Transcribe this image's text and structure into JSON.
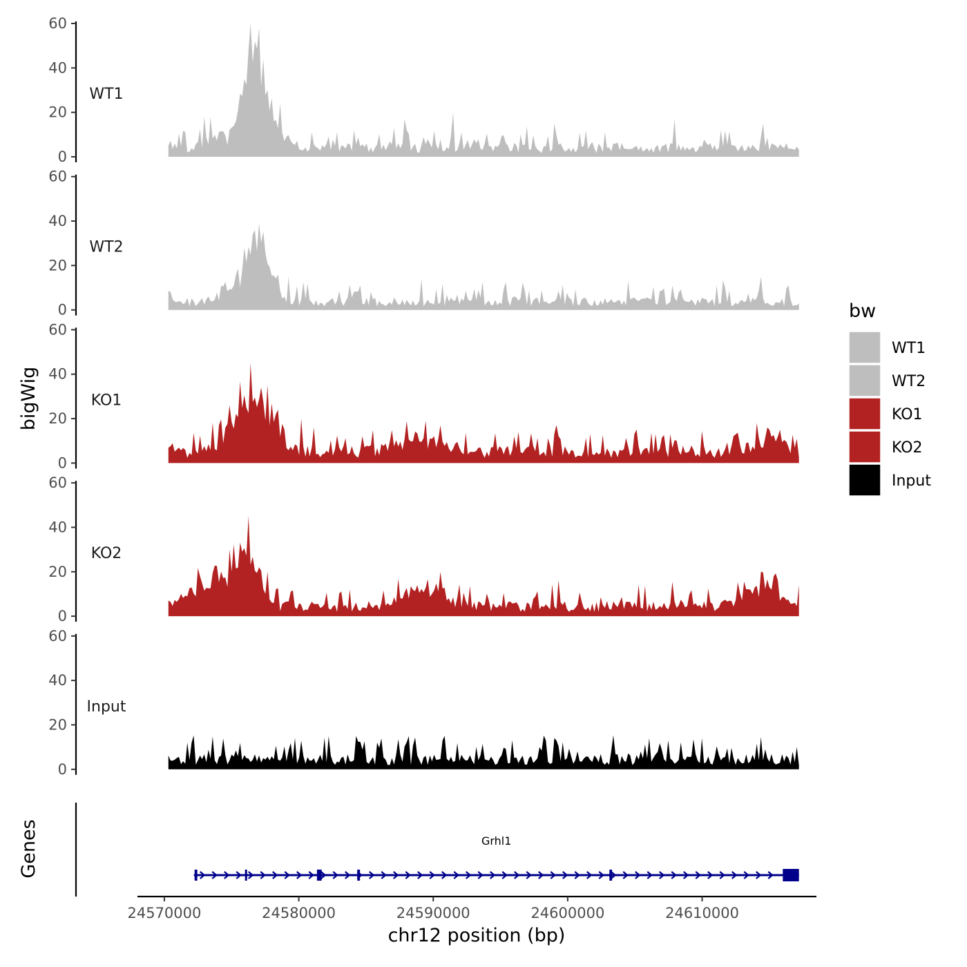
{
  "chart_data": {
    "type": "area",
    "y_axis_title": "bigWig",
    "x_axis_title": "chr12 position (bp)",
    "genes_axis_title": "Genes",
    "x_ticks": [
      24570000,
      24580000,
      24590000,
      24600000,
      24610000
    ],
    "x_tick_labels": [
      "24570000",
      "24580000",
      "24590000",
      "24600000",
      "24610000"
    ],
    "xlim": [
      24568000,
      24618500
    ],
    "data_range": [
      24570300,
      24617200
    ],
    "y_ticks": [
      0,
      20,
      40,
      60
    ],
    "y_tick_labels": [
      "0",
      "20",
      "40",
      "60"
    ],
    "ylim": [
      0,
      60
    ],
    "legend": {
      "title": "bw",
      "items": [
        {
          "label": "WT1",
          "color": "#bebebe"
        },
        {
          "label": "WT2",
          "color": "#bebebe"
        },
        {
          "label": "KO1",
          "color": "#b22222"
        },
        {
          "label": "KO2",
          "color": "#b22222"
        },
        {
          "label": "Input",
          "color": "#000000"
        }
      ]
    },
    "series": [
      {
        "name": "WT1",
        "color": "#bebebe",
        "noise": 5,
        "base": 5,
        "peaks": [
          [
            24576800,
            38,
            700
          ],
          [
            24576000,
            18,
            500
          ],
          [
            24578000,
            12,
            900
          ],
          [
            24574000,
            6,
            900
          ]
        ],
        "features": [
          [
            24577100,
            58
          ],
          [
            24576700,
            52
          ],
          [
            24576300,
            48
          ],
          [
            24575900,
            35
          ],
          [
            24577600,
            30
          ],
          [
            24578600,
            24
          ],
          [
            24587900,
            17
          ],
          [
            24591500,
            20
          ],
          [
            24599000,
            15
          ],
          [
            24608000,
            17
          ],
          [
            24614600,
            15
          ],
          [
            24573000,
            18
          ]
        ]
      },
      {
        "name": "WT2",
        "color": "#bebebe",
        "noise": 5,
        "base": 4.5,
        "peaks": [
          [
            24576700,
            24,
            700
          ],
          [
            24577600,
            12,
            700
          ],
          [
            24574800,
            6,
            800
          ]
        ],
        "features": [
          [
            24576500,
            34
          ],
          [
            24577100,
            39
          ],
          [
            24576800,
            36
          ],
          [
            24575900,
            28
          ],
          [
            24578500,
            16
          ],
          [
            24579300,
            15
          ],
          [
            24589200,
            14
          ],
          [
            24604500,
            13
          ],
          [
            24614300,
            15
          ],
          [
            24584500,
            11
          ]
        ]
      },
      {
        "name": "KO1",
        "color": "#b22222",
        "noise": 6,
        "base": 6.5,
        "peaks": [
          [
            24576500,
            22,
            900
          ],
          [
            24575000,
            8,
            900
          ],
          [
            24577700,
            10,
            800
          ],
          [
            24589000,
            7,
            1500
          ],
          [
            24614800,
            6,
            1100
          ]
        ],
        "features": [
          [
            24576400,
            45
          ],
          [
            24577200,
            34
          ],
          [
            24577600,
            35
          ],
          [
            24574900,
            26
          ],
          [
            24578500,
            24
          ],
          [
            24580200,
            20
          ],
          [
            24590600,
            17
          ],
          [
            24614000,
            18
          ],
          [
            24614900,
            16
          ],
          [
            24589400,
            19
          ]
        ]
      },
      {
        "name": "KO2",
        "color": "#b22222",
        "noise": 6,
        "base": 5.5,
        "peaks": [
          [
            24576300,
            22,
            700
          ],
          [
            24575000,
            14,
            900
          ],
          [
            24572600,
            8,
            1100
          ],
          [
            24589500,
            9,
            1300
          ],
          [
            24614600,
            9,
            1400
          ]
        ],
        "features": [
          [
            24576200,
            45
          ],
          [
            24574800,
            30
          ],
          [
            24577000,
            22
          ],
          [
            24577600,
            20
          ],
          [
            24590600,
            20
          ],
          [
            24614300,
            20
          ],
          [
            24572700,
            18
          ],
          [
            24615300,
            18
          ],
          [
            24615600,
            16
          ],
          [
            24588800,
            14
          ]
        ]
      },
      {
        "name": "Input",
        "color": "#000000",
        "noise": 6,
        "base": 5.5,
        "peaks": [],
        "features": [
          [
            24584300,
            15
          ],
          [
            24606000,
            14
          ],
          [
            24590700,
            13
          ],
          [
            24598400,
            13
          ],
          [
            24572100,
            12
          ],
          [
            24585800,
            12
          ],
          [
            24599200,
            13
          ],
          [
            24607500,
            13
          ],
          [
            24617100,
            10
          ]
        ]
      }
    ],
    "gene": {
      "name": "Grhl1",
      "start": 24572200,
      "end": 24617200,
      "strand": "+",
      "color": "#00008b",
      "exons": [
        [
          24572250,
          24572450
        ],
        [
          24576000,
          24576150
        ],
        [
          24581350,
          24581700
        ],
        [
          24584350,
          24584550
        ],
        [
          24603100,
          24603300
        ],
        [
          24616000,
          24617200
        ]
      ]
    }
  }
}
